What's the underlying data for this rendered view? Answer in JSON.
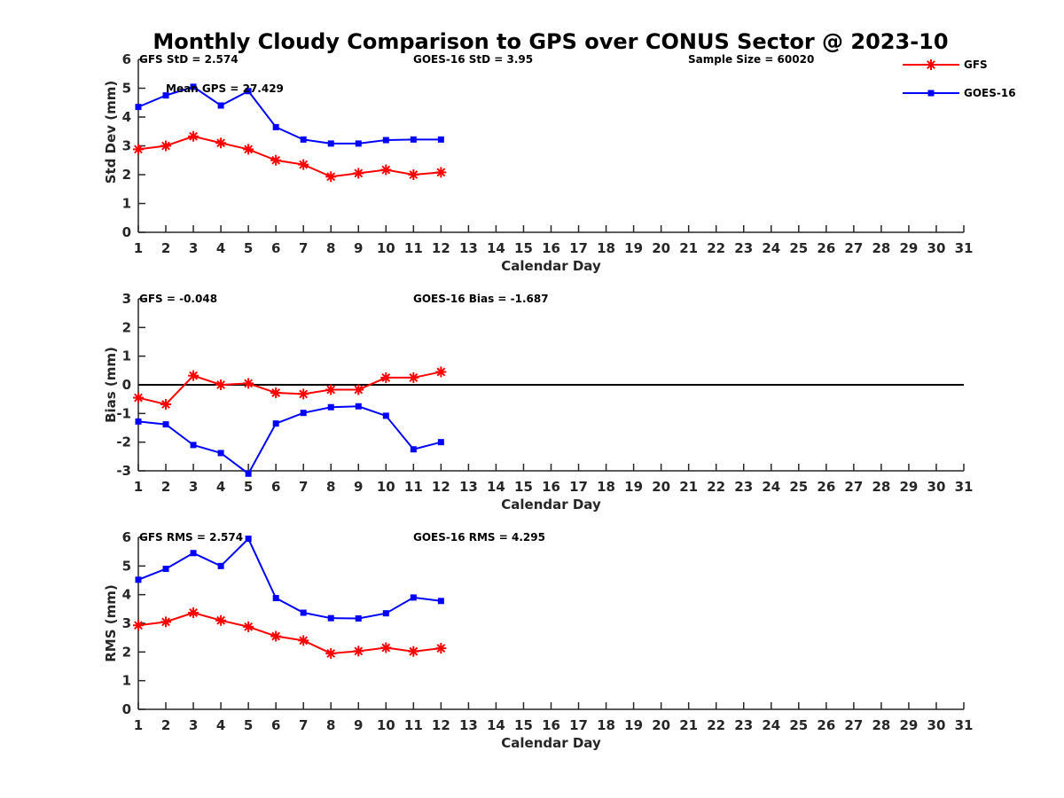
{
  "title": "Monthly Cloudy Comparison to GPS over CONUS Sector @ 2023-10",
  "legend": {
    "placement": "top-right",
    "entries": [
      {
        "name": "GFS",
        "color": "#ff0000",
        "marker": "asterisk"
      },
      {
        "name": "GOES-16",
        "color": "#0000ff",
        "marker": "square"
      }
    ]
  },
  "chart_data": [
    {
      "type": "line",
      "xlabel": "Calendar Day",
      "ylabel": "Std Dev (mm)",
      "xlim": [
        1,
        31
      ],
      "ylim": [
        0,
        6
      ],
      "x_ticks": [
        1,
        2,
        3,
        4,
        5,
        6,
        7,
        8,
        9,
        10,
        11,
        12,
        13,
        14,
        15,
        16,
        17,
        18,
        19,
        20,
        21,
        22,
        23,
        24,
        25,
        26,
        27,
        28,
        29,
        30,
        31
      ],
      "y_ticks": [
        0,
        1,
        2,
        3,
        4,
        5,
        6
      ],
      "grid": false,
      "annotations": [
        "GFS StD = 2.574",
        "GOES-16 StD = 3.95",
        "Sample Size = 60020",
        "Mean GPS = 27.429"
      ],
      "x": [
        1,
        2,
        3,
        4,
        5,
        6,
        7,
        8,
        9,
        10,
        11,
        12
      ],
      "series": [
        {
          "name": "GFS",
          "color": "#ff0000",
          "values": [
            2.88,
            3.0,
            3.33,
            3.1,
            2.88,
            2.5,
            2.35,
            1.93,
            2.05,
            2.17,
            2.0,
            2.08
          ]
        },
        {
          "name": "GOES-16",
          "color": "#0000ff",
          "values": [
            4.35,
            4.75,
            5.05,
            4.4,
            4.9,
            3.65,
            3.22,
            3.08,
            3.08,
            3.2,
            3.22,
            3.22
          ]
        }
      ]
    },
    {
      "type": "line",
      "xlabel": "Calendar Day",
      "ylabel": "Bias (mm)",
      "xlim": [
        1,
        31
      ],
      "ylim": [
        -3,
        3
      ],
      "x_ticks": [
        1,
        2,
        3,
        4,
        5,
        6,
        7,
        8,
        9,
        10,
        11,
        12,
        13,
        14,
        15,
        16,
        17,
        18,
        19,
        20,
        21,
        22,
        23,
        24,
        25,
        26,
        27,
        28,
        29,
        30,
        31
      ],
      "y_ticks": [
        -3,
        -2,
        -1,
        0,
        1,
        2,
        3
      ],
      "grid": false,
      "zero_line": true,
      "annotations": [
        "GFS = -0.048",
        "GOES-16 Bias = -1.687"
      ],
      "x": [
        1,
        2,
        3,
        4,
        5,
        6,
        7,
        8,
        9,
        10,
        11,
        12
      ],
      "series": [
        {
          "name": "GFS",
          "color": "#ff0000",
          "values": [
            -0.45,
            -0.68,
            0.32,
            0.0,
            0.05,
            -0.28,
            -0.32,
            -0.17,
            -0.17,
            0.25,
            0.25,
            0.45
          ]
        },
        {
          "name": "GOES-16",
          "color": "#0000ff",
          "values": [
            -1.28,
            -1.38,
            -2.1,
            -2.38,
            -3.1,
            -1.35,
            -0.98,
            -0.78,
            -0.75,
            -1.08,
            -2.25,
            -2.0
          ]
        }
      ]
    },
    {
      "type": "line",
      "xlabel": "Calendar Day",
      "ylabel": "RMS (mm)",
      "xlim": [
        1,
        31
      ],
      "ylim": [
        0,
        6
      ],
      "x_ticks": [
        1,
        2,
        3,
        4,
        5,
        6,
        7,
        8,
        9,
        10,
        11,
        12,
        13,
        14,
        15,
        16,
        17,
        18,
        19,
        20,
        21,
        22,
        23,
        24,
        25,
        26,
        27,
        28,
        29,
        30,
        31
      ],
      "y_ticks": [
        0,
        1,
        2,
        3,
        4,
        5,
        6
      ],
      "grid": false,
      "annotations": [
        "GFS RMS = 2.574",
        "GOES-16 RMS = 4.295"
      ],
      "x": [
        1,
        2,
        3,
        4,
        5,
        6,
        7,
        8,
        9,
        10,
        11,
        12
      ],
      "series": [
        {
          "name": "GFS",
          "color": "#ff0000",
          "values": [
            2.93,
            3.05,
            3.37,
            3.1,
            2.88,
            2.55,
            2.4,
            1.95,
            2.03,
            2.15,
            2.02,
            2.13
          ]
        },
        {
          "name": "GOES-16",
          "color": "#0000ff",
          "values": [
            4.52,
            4.9,
            5.45,
            5.0,
            5.95,
            3.88,
            3.37,
            3.18,
            3.17,
            3.35,
            3.9,
            3.78
          ]
        }
      ]
    }
  ]
}
